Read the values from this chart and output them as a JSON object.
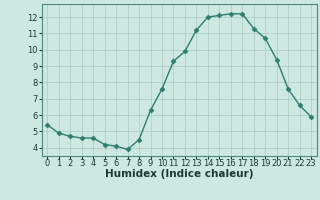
{
  "x": [
    0,
    1,
    2,
    3,
    4,
    5,
    6,
    7,
    8,
    9,
    10,
    11,
    12,
    13,
    14,
    15,
    16,
    17,
    18,
    19,
    20,
    21,
    22,
    23
  ],
  "y": [
    5.4,
    4.9,
    4.7,
    4.6,
    4.6,
    4.2,
    4.1,
    3.9,
    4.5,
    6.3,
    7.6,
    9.3,
    9.9,
    11.2,
    12.0,
    12.1,
    12.2,
    12.2,
    11.3,
    10.7,
    9.4,
    7.6,
    6.6,
    5.9
  ],
  "line_color": "#2e7d6e",
  "marker": "D",
  "marker_size": 2.5,
  "line_width": 1.0,
  "bg_color": "#cce8e0",
  "grid_color": "#b0cfc8",
  "xlabel": "Humidex (Indice chaleur)",
  "xlabel_fontsize": 7.5,
  "xlabel_fontweight": "bold",
  "xlim": [
    -0.5,
    23.5
  ],
  "ylim": [
    3.5,
    12.8
  ],
  "yticks": [
    4,
    5,
    6,
    7,
    8,
    9,
    10,
    11,
    12
  ],
  "xticks": [
    0,
    1,
    2,
    3,
    4,
    5,
    6,
    7,
    8,
    9,
    10,
    11,
    12,
    13,
    14,
    15,
    16,
    17,
    18,
    19,
    20,
    21,
    22,
    23
  ],
  "tick_fontsize": 6.0,
  "spine_color": "#4a8a80"
}
